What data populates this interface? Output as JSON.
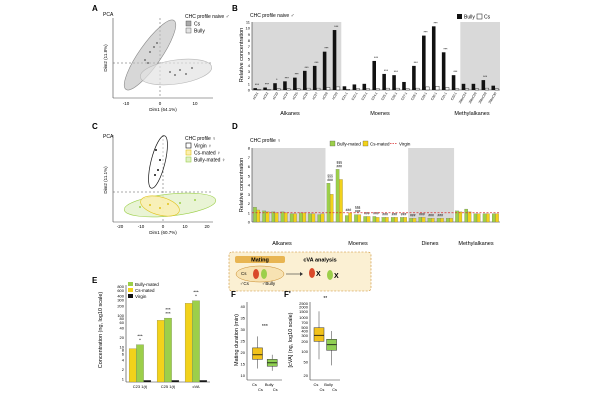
{
  "colors": {
    "black": "#111111",
    "grey": "#a9a9a9",
    "shade": "#d9d9d9",
    "ellipse_dark": "#8a8a8a",
    "ellipse_light": "#cfcfcf",
    "virgin": "#111111",
    "cs_mated": "#f2d21b",
    "bully_mated": "#9ccf4a",
    "ref_red": "#d93030",
    "box_cs": "#f2c21a",
    "box_bully": "#8fcf52",
    "inset_bg": "#fbf0d3",
    "inset_border": "#c98a2a"
  },
  "panels": {
    "A": "A",
    "B": "B",
    "C": "C",
    "D": "D",
    "E": "E",
    "F": "F",
    "F2": "F'"
  },
  "panelA": {
    "plot_title": "PCA",
    "legend_title": "CHC profile naive ♂",
    "legend_cs": "Cs",
    "legend_bully": "Bully",
    "xlabel": "Dim1 (64.1%)",
    "ylabel": "Dim2 (11.8%)",
    "xticks": [
      "-10",
      "0",
      "10"
    ]
  },
  "panelB": {
    "title": "CHC profile naive ♂",
    "ylabel": "Relative concentration",
    "legend_bully": "Bully",
    "legend_cs": "Cs",
    "yticks": [
      "0",
      "1",
      "2",
      "3",
      "4",
      "5",
      "6",
      "7",
      "8",
      "9",
      "10",
      "11"
    ],
    "groups": [
      "Alkanes",
      "Moenes",
      "Methylalkanes"
    ],
    "categories": [
      "nC21",
      "nC22",
      "nC23",
      "nC24",
      "nC25",
      "nC26",
      "nC27",
      "nC28",
      "nC29",
      "C21:1",
      "C22:1",
      "C23:1",
      "C24:1",
      "C25:1",
      "C26:1",
      "C27:1",
      "C28:1",
      "C29:1",
      "C30:1",
      "C31:1",
      "C32:1",
      "2MeC24",
      "2MeC26",
      "2MeC28",
      "2MeC30"
    ],
    "series": [
      {
        "name": "Bully",
        "values": [
          0.3,
          0.4,
          1.1,
          1.4,
          2.0,
          3.1,
          3.9,
          6.2,
          9.7,
          0.6,
          0.9,
          1.0,
          4.7,
          2.6,
          2.4,
          1.3,
          3.9,
          8.8,
          10.3,
          6.1,
          2.4,
          1.0,
          1.0,
          1.6,
          0.7
        ]
      },
      {
        "name": "Cs",
        "values": [
          0.1,
          0.1,
          0.2,
          0.2,
          0.2,
          0.3,
          0.3,
          0.4,
          0.5,
          0.1,
          0.2,
          0.2,
          0.2,
          0.3,
          0.3,
          0.2,
          0.3,
          0.5,
          0.6,
          0.4,
          0.2,
          0.2,
          0.2,
          0.3,
          0.2
        ]
      }
    ],
    "stars": [
      "***",
      "***",
      "*",
      "***",
      "***",
      "***",
      "***",
      "***",
      "***",
      "",
      "",
      "",
      "***",
      "***",
      "***",
      "",
      "***",
      "***",
      "***",
      "***",
      "***",
      "",
      "",
      "***",
      ""
    ]
  },
  "panelC": {
    "plot_title": "PCA",
    "legend_title": "CHC profile ♀",
    "legend_virgin": "Virgin ♀",
    "legend_cs_mated": "Cs-mated ♀",
    "legend_bully_mated": "Bully-mated ♀",
    "xlabel": "Dim1 (60.7%)",
    "ylabel": "Dim2 (11.1%)",
    "xticks": [
      "-20",
      "-10",
      "0",
      "10",
      "20"
    ]
  },
  "panelD": {
    "title": "CHC profile ♀",
    "ylabel": "Relative concentration",
    "legend_bully_mated": "Bully-mated",
    "legend_cs_mated": "Cs-mated",
    "legend_virgin": "Virgin",
    "yticks": [
      "0",
      "1",
      "2",
      "3",
      "4",
      "5",
      "6",
      "7",
      "8"
    ],
    "groups": [
      "Alkanes",
      "Moenes",
      "Dienes",
      "Methylalkanes"
    ],
    "series": [
      {
        "name": "Bully-mated",
        "values": [
          1.6,
          1.2,
          1.1,
          1.1,
          0.9,
          1.0,
          0.9,
          0.8,
          4.2,
          5.7,
          0.7,
          0.8,
          0.6,
          0.6,
          0.5,
          0.5,
          0.5,
          0.4,
          0.5,
          0.4,
          0.4,
          0.4,
          1.2,
          1.4,
          0.9,
          0.9,
          0.9
        ]
      },
      {
        "name": "Cs-mated",
        "values": [
          1.3,
          1.1,
          1.0,
          1.0,
          0.9,
          1.0,
          0.9,
          0.9,
          3.0,
          4.6,
          1.0,
          0.8,
          0.6,
          0.5,
          0.5,
          0.5,
          0.5,
          0.4,
          0.5,
          0.4,
          0.4,
          0.4,
          1.1,
          1.1,
          0.9,
          0.9,
          0.9
        ]
      }
    ],
    "sig": [
      "",
      "",
      "",
      "",
      "",
      "",
      "",
      "",
      "###",
      "###",
      "###",
      "###",
      "###",
      "###",
      "###",
      "###",
      "###",
      "###",
      "###",
      "###",
      "###",
      "",
      "",
      "",
      "",
      "",
      ""
    ],
    "sig2": [
      "",
      "",
      "",
      "",
      "",
      "",
      "",
      "",
      "§§§",
      "§§§",
      "",
      "§§§",
      "",
      "",
      "",
      "",
      "",
      "",
      "",
      "",
      "",
      "",
      "",
      "",
      "",
      "",
      ""
    ]
  },
  "panelE": {
    "ylabel": "Concentration (ng, log10 scale)",
    "legend_bully": "Bully-mated",
    "legend_cs": "Cs-mated",
    "legend_virgin": "Virgin",
    "yticks": [
      "800",
      "600",
      "400",
      "300",
      "200",
      "100",
      "80",
      "60",
      "40",
      "20",
      "10",
      "8",
      "6",
      "4",
      "2",
      "1"
    ],
    "categories": [
      "C23 1(t)",
      "C25 1(t)",
      "cVA"
    ],
    "bully": [
      12,
      82,
      290
    ],
    "cs": [
      9,
      70,
      240
    ],
    "virgin": [
      0.9,
      0.9,
      0.9
    ],
    "sig": [
      "***",
      "***",
      "***"
    ],
    "sig_bully_cs": [
      "*",
      "***",
      "*"
    ]
  },
  "inset": {
    "mating": "Mating",
    "cva": "cVA analysis",
    "cs": "Cs",
    "x_mark": "X",
    "cs_male": "♂Cs",
    "bully_male": "♂Bully"
  },
  "panelF": {
    "ylabel": "Mating duration (min)",
    "yticks": [
      "40",
      "35",
      "30",
      "25",
      "20",
      "15",
      "10"
    ],
    "sig": "***",
    "xlabels": [
      "Cs",
      "Cs",
      "Bully",
      "Cs"
    ],
    "box_cs": {
      "q1": 17,
      "median": 19,
      "q3": 22,
      "min": 13,
      "max": 27
    },
    "box_bully": {
      "q1": 14,
      "median": 15.5,
      "q3": 17,
      "min": 12,
      "max": 19
    }
  },
  "panelF2": {
    "ylabel": "[cVA] (ng, log10 scale)",
    "yticks": [
      "2500",
      "2000",
      "1500",
      "1000",
      "700",
      "500",
      "400",
      "300",
      "200",
      "100",
      "50",
      "20"
    ],
    "sig": "**",
    "xlabels": [
      "Cs",
      "Cs",
      "Bully",
      "Cs"
    ],
    "box_cs": {
      "q1": 200,
      "median": 300,
      "q3": 500,
      "min": 60,
      "max": 1500
    },
    "box_bully": {
      "q1": 110,
      "median": 160,
      "q3": 230,
      "min": 40,
      "max": 400
    }
  }
}
